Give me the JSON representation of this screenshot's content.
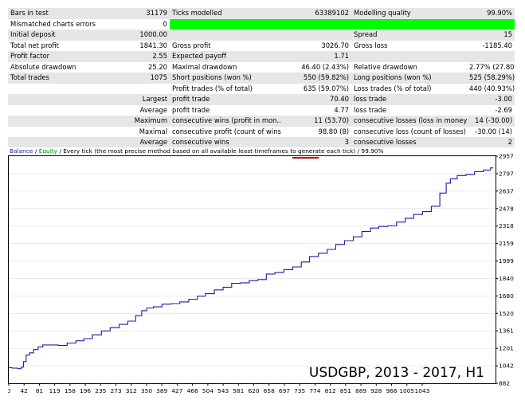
{
  "report": {
    "rows": [
      {
        "c1": "Bars in test",
        "c2": "31179",
        "c3": "Ticks modelled",
        "c4": "63389102",
        "c5": "Modelling quality",
        "c6": "99.90%"
      },
      {
        "c1": "Mismatched charts errors",
        "c2": "0",
        "c3": "",
        "c4": "",
        "c5": "",
        "c6": ""
      },
      {
        "c1": "Initial deposit",
        "c2": "1000.00",
        "c3": "",
        "c4": "",
        "c5": "Spread",
        "c6": "15"
      },
      {
        "c1": "Total net profit",
        "c2": "1841.30",
        "c3": "Gross profit",
        "c4": "3026.70",
        "c5": "Gross loss",
        "c6": "-1185.40"
      },
      {
        "c1": "Profit factor",
        "c2": "2.55",
        "c3": "Expected payoff",
        "c4": "1.71",
        "c5": "",
        "c6": ""
      },
      {
        "c1": "Absolute drawdown",
        "c2": "25.20",
        "c3": "Maximal drawdown",
        "c4": "46.40 (2.43%)",
        "c5": "Relative drawdown",
        "c6": "2.77% (27.80)"
      },
      {
        "c1": "Total trades",
        "c2": "1075",
        "c3": "Short positions (won %)",
        "c4": "550 (59.82%)",
        "c5": "Long positions (won %)",
        "c6": "525 (58.29%)"
      },
      {
        "c1": "",
        "c2": "",
        "c3": "Profit trades (% of total)",
        "c4": "635 (59.07%)",
        "c5": "Loss trades (% of total)",
        "c6": "440 (40.93%)"
      },
      {
        "c1": "",
        "c2": "Largest",
        "c3": "profit trade",
        "c4": "70.40",
        "c5": "loss trade",
        "c6": "-3.00"
      },
      {
        "c1": "",
        "c2": "Average",
        "c3": "profit trade",
        "c4": "4.77",
        "c5": "loss trade",
        "c6": "-2.69"
      },
      {
        "c1": "",
        "c2": "Maximum",
        "c3": "consecutive wins (profit in mon...",
        "c4": "11 (53.70)",
        "c5": "consecutive losses (loss in money)",
        "c6": "14 (-30.00)"
      },
      {
        "c1": "",
        "c2": "Maximal",
        "c3": "consecutive profit (count of wins)",
        "c4": "98.80 (8)",
        "c5": "consecutive loss (count of losses)",
        "c6": "-30.00 (14)"
      },
      {
        "c1": "",
        "c2": "Average",
        "c3": "consecutive wins",
        "c4": "3",
        "c5": "consecutive losses",
        "c6": "2"
      }
    ]
  },
  "chart_data": {
    "type": "line",
    "legend": {
      "balance": "Balance",
      "sep1": " / ",
      "equity": "Equity",
      "rest": " / Every tick (the most precise method based on all available least timeframes to generate each tick) / ",
      "quality": "99.90%"
    },
    "overlay_text": "USDGBP, 2013 - 2017, H1",
    "colors": {
      "line": "#1c1ca8",
      "balance": "#1c1ca8",
      "equity": "#008a00",
      "underline": "#cc0000",
      "grid": "#d9d9d9"
    },
    "x_ticks": [
      "0",
      "42",
      "81",
      "119",
      "158",
      "196",
      "235",
      "273",
      "312",
      "350",
      "389",
      "427",
      "466",
      "504",
      "543",
      "581",
      "620",
      "658",
      "697",
      "735",
      "774",
      "812",
      "851",
      "889",
      "928",
      "966",
      "1005",
      "1043"
    ],
    "y_ticks": [
      "2957",
      "2797",
      "2637",
      "2478",
      "2318",
      "2159",
      "1999",
      "1840",
      "1680",
      "1520",
      "1361",
      "1201",
      "1042",
      "882"
    ],
    "xlim": [
      0,
      1080
    ],
    "ylim": [
      882,
      2957
    ],
    "x": [
      0,
      15,
      25,
      30,
      35,
      42,
      50,
      60,
      70,
      81,
      100,
      119,
      140,
      158,
      175,
      196,
      215,
      235,
      255,
      273,
      290,
      300,
      312,
      330,
      350,
      370,
      389,
      410,
      427,
      446,
      466,
      485,
      504,
      524,
      543,
      562,
      581,
      600,
      620,
      640,
      658,
      677,
      697,
      716,
      735,
      755,
      774,
      793,
      812,
      830,
      851,
      870,
      889,
      908,
      928,
      947,
      966,
      975,
      985,
      1005,
      1024,
      1043,
      1063,
      1075
    ],
    "y": [
      1025,
      1020,
      1015,
      1030,
      1080,
      1140,
      1160,
      1190,
      1215,
      1232,
      1232,
      1228,
      1250,
      1270,
      1290,
      1325,
      1360,
      1390,
      1420,
      1450,
      1500,
      1545,
      1570,
      1580,
      1605,
      1610,
      1625,
      1650,
      1678,
      1700,
      1735,
      1760,
      1795,
      1800,
      1820,
      1830,
      1880,
      1895,
      1920,
      1945,
      1990,
      2040,
      2070,
      2105,
      2150,
      2185,
      2220,
      2270,
      2300,
      2315,
      2320,
      2355,
      2390,
      2425,
      2450,
      2500,
      2620,
      2710,
      2750,
      2780,
      2790,
      2815,
      2830,
      2850
    ]
  }
}
